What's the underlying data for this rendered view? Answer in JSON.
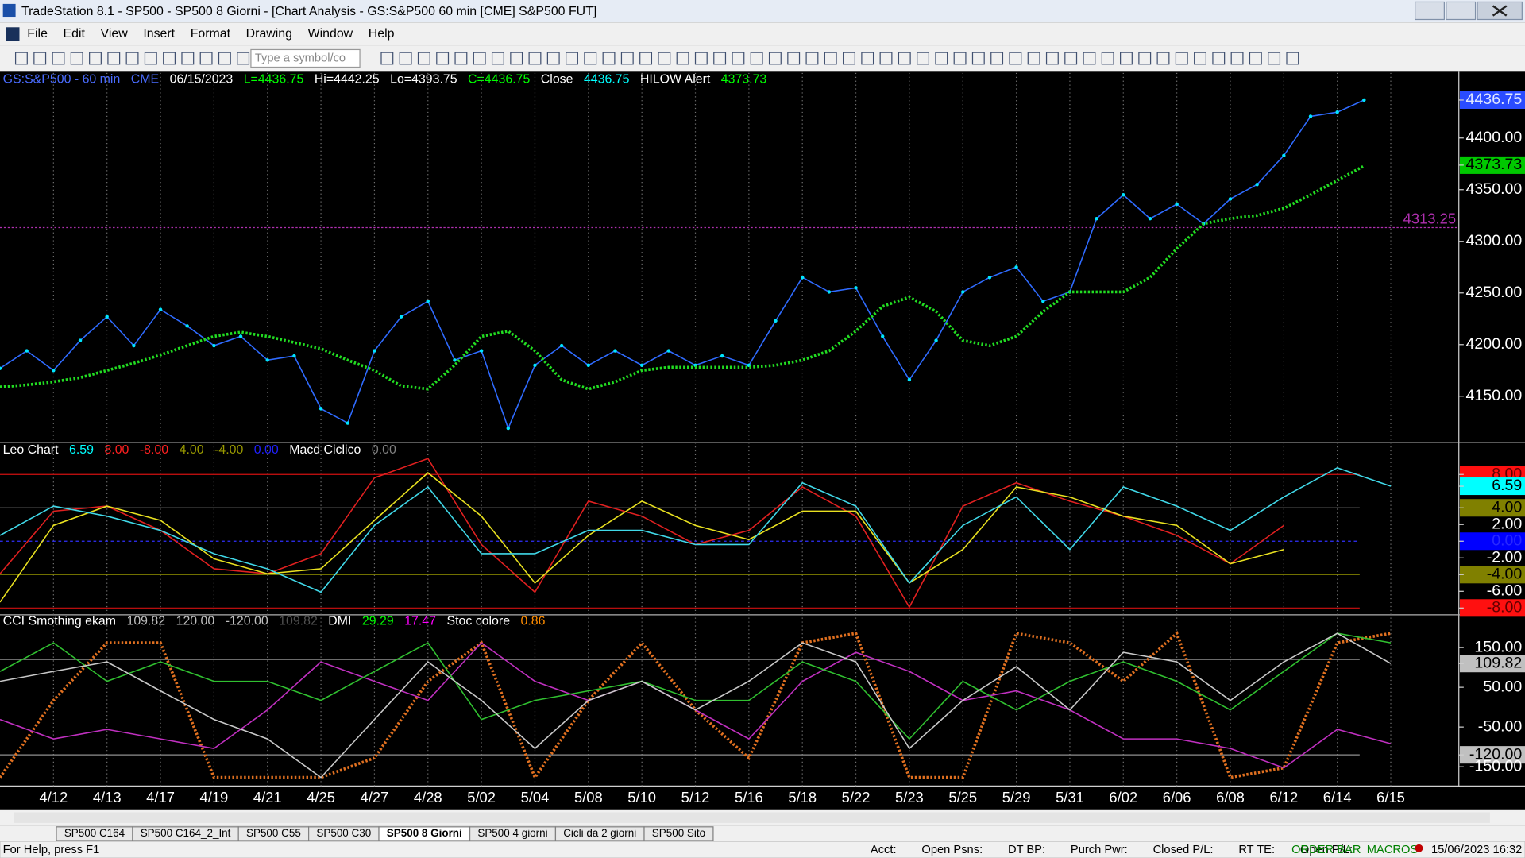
{
  "window": {
    "title": "TradeStation 8.1 - SP500 - SP500 8 Giorni - [Chart Analysis - GS:S&P500  60 min  [CME] S&P500 FUT]"
  },
  "menu": [
    "File",
    "Edit",
    "View",
    "Insert",
    "Format",
    "Drawing",
    "Window",
    "Help"
  ],
  "toolbar": {
    "symbol_input": "Type a symbol/co"
  },
  "chart_data": [
    {
      "type": "line",
      "header": [
        {
          "text": "GS:S&P500 - 60 min",
          "color": "#4a6cff"
        },
        {
          "text": "CME",
          "color": "#4a6cff"
        },
        {
          "text": "06/15/2023",
          "color": "#ffffff"
        },
        {
          "text": "L=4436.75",
          "color": "#00ff00"
        },
        {
          "text": "Hi=4442.25",
          "color": "#ffffff"
        },
        {
          "text": "Lo=4393.75",
          "color": "#ffffff"
        },
        {
          "text": "C=4436.75",
          "color": "#00ff00"
        },
        {
          "text": "Close",
          "color": "#ffffff"
        },
        {
          "text": "4436.75",
          "color": "#00ffff"
        },
        {
          "text": "HILOW Alert",
          "color": "#ffffff"
        },
        {
          "text": "4373.73",
          "color": "#00ff00"
        }
      ],
      "categories": [
        null,
        null,
        "4/12",
        null,
        "4/13",
        null,
        "4/17",
        null,
        "4/19",
        null,
        "4/21",
        null,
        "4/25",
        null,
        "4/27",
        null,
        "4/28",
        null,
        "5/02",
        null,
        "5/04",
        null,
        "5/08",
        null,
        "5/10",
        null,
        "5/12",
        null,
        "5/16",
        null,
        "5/18",
        null,
        "5/22",
        null,
        "5/23",
        null,
        "5/25",
        null,
        "5/29",
        null,
        "5/31",
        null,
        "6/02",
        null,
        "6/06",
        null,
        "6/08",
        null,
        "6/12",
        null,
        "6/14",
        null,
        "6/15"
      ],
      "series": [
        {
          "color": "#2f6bff",
          "dot_color": "#00e5ff",
          "style": "dots",
          "values": [
            4177,
            4194,
            4175,
            4204,
            4227,
            4199,
            4234,
            4218,
            4199,
            4208,
            4185,
            4189,
            4138,
            4124,
            4194,
            4227,
            4242,
            4185,
            4194,
            4119,
            4180,
            4199,
            4180,
            4194,
            4180,
            4194,
            4180,
            4189,
            4180,
            4223,
            4265,
            4251,
            4255,
            4208,
            4166,
            4204,
            4251,
            4265,
            4275,
            4242,
            4251,
            4322,
            4345,
            4322,
            4336,
            4317,
            4341,
            4355,
            4383,
            4421,
            4425,
            4436.75,
            null
          ]
        },
        {
          "color": "#22dd22",
          "style": "dotted",
          "values": [
            4159,
            4161,
            4164,
            4168,
            4175,
            4182,
            4190,
            4199,
            4208,
            4212,
            4208,
            4202,
            4196,
            4185,
            4175,
            4160,
            4157,
            4180,
            4208,
            4213,
            4194,
            4166,
            4157,
            4164,
            4175,
            4178,
            4178,
            4178,
            4178,
            4180,
            4185,
            4194,
            4213,
            4237,
            4246,
            4232,
            4204,
            4199,
            4208,
            4232,
            4251,
            4251,
            4251,
            4265,
            4293,
            4317,
            4322,
            4325,
            4332,
            4345,
            4359,
            4373,
            null
          ]
        }
      ],
      "ylim": [
        4107,
        4463
      ],
      "yticks": [
        {
          "value": 4150,
          "label": "4150.00"
        },
        {
          "value": 4200,
          "label": "4200.00"
        },
        {
          "value": 4250,
          "label": "4250.00"
        },
        {
          "value": 4300,
          "label": "4300.00"
        },
        {
          "value": 4350,
          "label": "4350.00"
        },
        {
          "value": 4400,
          "label": "4400.00"
        }
      ],
      "value_boxes": [
        {
          "value": 4436.75,
          "label": "4436.75",
          "bg": "#2a4cff",
          "fg": "#e0e8ff"
        },
        {
          "value": 4373.73,
          "label": "4373.73",
          "bg": "#00c800",
          "fg": "#000000"
        }
      ],
      "hline": {
        "value": 4313.25,
        "label": "4313.25",
        "color": "#b030b0"
      }
    },
    {
      "type": "line",
      "header": [
        {
          "text": "Leo Chart",
          "color": "#ffffff"
        },
        {
          "text": "6.59",
          "color": "#00ffff"
        },
        {
          "text": "8.00",
          "color": "#ff2020"
        },
        {
          "text": "-8.00",
          "color": "#ff2020"
        },
        {
          "text": "4.00",
          "color": "#9a9a00"
        },
        {
          "text": "-4.00",
          "color": "#9a9a00"
        },
        {
          "text": "0.00",
          "color": "#2020ff"
        },
        {
          "text": "Macd Ciclico",
          "color": "#ffffff"
        },
        {
          "text": "0.00",
          "color": "#808080"
        }
      ],
      "series": [
        {
          "color": "#e02020",
          "style": "line",
          "values": [
            -3.9,
            3.6,
            4.2,
            1.3,
            -3.3,
            -3.9,
            -1.5,
            7.6,
            9.9,
            -0.4,
            -6.1,
            4.8,
            3,
            -0.4,
            1.3,
            6.5,
            3,
            -7.9,
            4.2,
            7,
            4.8,
            3,
            0.7,
            -2.7,
            1.9,
            null,
            null
          ]
        },
        {
          "color": "#e8e020",
          "style": "line",
          "values": [
            -7.3,
            1.9,
            4.2,
            2.5,
            -2.1,
            -3.9,
            -3.3,
            2.5,
            8.2,
            3,
            -5,
            0.7,
            4.8,
            1.9,
            0.2,
            3.6,
            3.6,
            -5,
            -1,
            6.5,
            5.3,
            3,
            1.9,
            -2.7,
            -1,
            null,
            null
          ]
        },
        {
          "color": "#40d8e8",
          "style": "line",
          "values": [
            0.7,
            4.2,
            3,
            1.3,
            -1.5,
            -3.3,
            -6.1,
            1.9,
            6.5,
            -1.5,
            -1.5,
            1.3,
            1.3,
            -0.4,
            -0.4,
            7,
            4.2,
            -5,
            1.9,
            5.3,
            -1,
            6.5,
            4.2,
            1.3,
            5.3,
            8.8,
            6.59
          ]
        }
      ],
      "ylim": [
        -8.7,
        11.7
      ],
      "yticks": [
        {
          "value": 8,
          "label": "8.00",
          "bg": "#ff1010",
          "fg": "#600000",
          "line": "#d01010"
        },
        {
          "value": 6.59,
          "label": "6.59",
          "bg": "#00ffff",
          "fg": "#000000"
        },
        {
          "value": 4,
          "label": "4.00",
          "bg": "#808000",
          "fg": "#000000",
          "line": "#707070"
        },
        {
          "value": 2,
          "label": "2.00"
        },
        {
          "value": 0,
          "label": "0.00",
          "bg": "#0000ff",
          "fg": "#2828ff",
          "line": "#3030ff"
        },
        {
          "value": -2,
          "label": "-2.00"
        },
        {
          "value": -4,
          "label": "-4.00",
          "bg": "#808000",
          "fg": "#000000",
          "line": "#808000"
        },
        {
          "value": -6,
          "label": "-6.00"
        },
        {
          "value": -8,
          "label": "-8.00",
          "bg": "#ff1010",
          "fg": "#600000",
          "line": "#d01010"
        }
      ]
    },
    {
      "type": "line",
      "header": [
        {
          "text": "CCI Smothing ekam",
          "color": "#ffffff"
        },
        {
          "text": "109.82",
          "color": "#c0c0c0"
        },
        {
          "text": "120.00",
          "color": "#c0c0c0"
        },
        {
          "text": "-120.00",
          "color": "#c0c0c0"
        },
        {
          "text": "109.82",
          "color": "#505050"
        },
        {
          "text": "DMI",
          "color": "#ffffff"
        },
        {
          "text": "29.29",
          "color": "#00ff00"
        },
        {
          "text": "17.47",
          "color": "#ff00ff"
        },
        {
          "text": "Stoc colore",
          "color": "#ffffff"
        },
        {
          "text": "0.86",
          "color": "#ff8c00"
        }
      ],
      "series": [
        {
          "color": "#e07020",
          "style": "dotted",
          "values": [
            -177,
            17,
            162,
            162,
            -177,
            -177,
            -177,
            -128,
            65,
            162,
            -177,
            17,
            162,
            -7,
            -128,
            162,
            186,
            -177,
            -177,
            186,
            162,
            65,
            186,
            -177,
            -153,
            162,
            186
          ]
        },
        {
          "color": "#c030c0",
          "style": "line",
          "values": [
            -31,
            -80,
            -56,
            -80,
            -104,
            -7,
            114,
            65,
            17,
            162,
            65,
            17,
            65,
            -7,
            -80,
            65,
            138,
            90,
            17,
            41,
            -7,
            -80,
            -80,
            -104,
            -153,
            -56,
            -92
          ]
        },
        {
          "color": "#30c030",
          "style": "line",
          "values": [
            90,
            162,
            65,
            114,
            65,
            65,
            17,
            90,
            162,
            -31,
            17,
            41,
            65,
            17,
            17,
            114,
            65,
            -80,
            65,
            -7,
            65,
            114,
            65,
            -7,
            90,
            186,
            162
          ]
        },
        {
          "color": "#c8c8c8",
          "style": "line",
          "values": [
            65,
            90,
            114,
            41,
            -31,
            -80,
            -177,
            -31,
            114,
            17,
            -104,
            17,
            65,
            -7,
            65,
            162,
            114,
            -104,
            17,
            102,
            -7,
            138,
            114,
            17,
            114,
            186,
            109.82
          ]
        }
      ],
      "ylim": [
        -196,
        230
      ],
      "levels": [
        120,
        -120
      ],
      "yticks": [
        {
          "value": 150,
          "label": "150.00"
        },
        {
          "value": 109.82,
          "label": "109.82",
          "bg": "#c0c0c0",
          "fg": "#000000"
        },
        {
          "value": 50,
          "label": "50.00"
        },
        {
          "value": -50,
          "label": "-50.00"
        },
        {
          "value": -120,
          "label": "-120.00",
          "bg": "#c0c0c0",
          "fg": "#000000"
        },
        {
          "value": -150,
          "label": "-150.00"
        }
      ]
    }
  ],
  "tabs": [
    "SP500 C164",
    "SP500 C164_2_Int",
    "SP500 C55",
    "SP500 C30",
    "SP500 8 Giorni",
    "SP500 4 giorni",
    "Cicli da 2 giorni",
    "SP500 Sito"
  ],
  "active_tab": 4,
  "status_bar": {
    "help": "For Help, press F1",
    "fields": [
      "Acct:",
      "Open Psns:",
      "DT BP:",
      "Purch Pwr:",
      "Closed P/L:",
      "RT TE:",
      "Open P/L:"
    ],
    "order_bar": "ORDER BAR",
    "macros": "MACROS",
    "clock": "15/06/2023 16:32"
  }
}
